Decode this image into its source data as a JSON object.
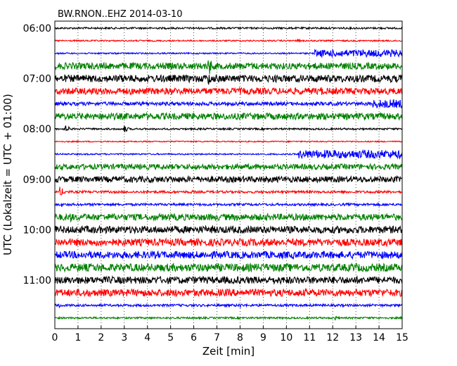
{
  "chart_data": {
    "type": "line",
    "title": "BW.RNON..EHZ 2014-03-10",
    "xlabel": "Zeit  [min]",
    "ylabel": "UTC (Lokalzeit = UTC + 01:00)",
    "xlim": [
      0,
      15
    ],
    "x_ticks": [
      "0",
      "1",
      "2",
      "3",
      "4",
      "5",
      "6",
      "7",
      "8",
      "9",
      "10",
      "11",
      "12",
      "13",
      "14",
      "15"
    ],
    "y_ticks": [
      "06:00",
      "07:00",
      "08:00",
      "09:00",
      "10:00",
      "11:00"
    ],
    "grid": "vertical dotted at each minute",
    "colors_cycle": [
      "#000000",
      "#ff0000",
      "#0000ff",
      "#008000"
    ],
    "traces": [
      {
        "start": "06:00",
        "amplitude": 0.15,
        "events": []
      },
      {
        "start": "06:15",
        "amplitude": 0.12,
        "events": [
          {
            "t": 10.5,
            "a": 0.3
          }
        ]
      },
      {
        "start": "06:30",
        "amplitude": 0.12,
        "events": [
          {
            "t": 11.2,
            "a": 0.6,
            "sustained": true
          }
        ]
      },
      {
        "start": "06:45",
        "amplitude": 0.55,
        "events": [
          {
            "t": 6.65,
            "a": 1.8
          }
        ]
      },
      {
        "start": "07:00",
        "amplitude": 0.6,
        "events": [
          {
            "t": 6.65,
            "a": 1.2
          }
        ]
      },
      {
        "start": "07:15",
        "amplitude": 0.55,
        "events": [
          {
            "t": 11.5,
            "a": 0.8
          }
        ]
      },
      {
        "start": "07:30",
        "amplitude": 0.3,
        "events": [
          {
            "t": 13.7,
            "a": 0.7,
            "sustained": true
          }
        ]
      },
      {
        "start": "07:45",
        "amplitude": 0.55,
        "events": []
      },
      {
        "start": "08:00",
        "amplitude": 0.15,
        "events": [
          {
            "t": 0.5,
            "a": 0.6
          },
          {
            "t": 3.0,
            "a": 0.7
          }
        ]
      },
      {
        "start": "08:15",
        "amplitude": 0.1,
        "events": []
      },
      {
        "start": "08:30",
        "amplitude": 0.12,
        "events": [
          {
            "t": 10.5,
            "a": 0.7,
            "sustained": true
          }
        ]
      },
      {
        "start": "08:45",
        "amplitude": 0.45,
        "events": []
      },
      {
        "start": "09:00",
        "amplitude": 0.5,
        "events": []
      },
      {
        "start": "09:15",
        "amplitude": 0.2,
        "events": [
          {
            "t": 0.25,
            "a": 0.9
          },
          {
            "t": 5.9,
            "a": 0.3
          },
          {
            "t": 12.6,
            "a": 0.3
          }
        ]
      },
      {
        "start": "09:30",
        "amplitude": 0.2,
        "events": [
          {
            "t": 0.3,
            "a": 0.4
          }
        ]
      },
      {
        "start": "09:45",
        "amplitude": 0.55,
        "events": [
          {
            "t": 0.7,
            "a": 0.9
          }
        ]
      },
      {
        "start": "10:00",
        "amplitude": 0.6,
        "events": []
      },
      {
        "start": "10:15",
        "amplitude": 0.6,
        "events": [
          {
            "t": 3.2,
            "a": 0.8
          },
          {
            "t": 7.9,
            "a": 0.8
          }
        ]
      },
      {
        "start": "10:30",
        "amplitude": 0.6,
        "events": []
      },
      {
        "start": "10:45",
        "amplitude": 0.65,
        "events": []
      },
      {
        "start": "11:00",
        "amplitude": 0.6,
        "events": []
      },
      {
        "start": "11:15",
        "amplitude": 0.6,
        "events": []
      },
      {
        "start": "11:30",
        "amplitude": 0.2,
        "events": [
          {
            "t": 0.2,
            "a": 0.4
          },
          {
            "t": 8.0,
            "a": 0.4
          }
        ]
      },
      {
        "start": "11:45",
        "amplitude": 0.15,
        "events": [
          {
            "t": 12.1,
            "a": 0.5
          }
        ]
      }
    ]
  }
}
